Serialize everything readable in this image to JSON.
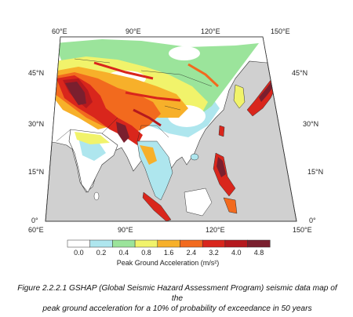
{
  "map": {
    "longitude_labels_top": [
      "60°E",
      "90°E",
      "120°E",
      "150°E"
    ],
    "longitude_labels_bottom": [
      "60°E",
      "90°E",
      "120°E",
      "150°E"
    ],
    "latitude_labels_left": [
      "45°N",
      "30°N",
      "15°N",
      "0°"
    ],
    "latitude_labels_right": [
      "45°N",
      "30°N",
      "15°N",
      "0°"
    ],
    "colors": {
      "ocean": "#d0d0d0",
      "land_low": "#ffffff",
      "level_02": "#aee6ee",
      "level_04": "#9be49b",
      "level_08": "#f1f36b",
      "level_16": "#f7b02a",
      "level_24": "#f26a1e",
      "level_32": "#d9261c",
      "level_40": "#b5191e",
      "level_48": "#7a1f2e"
    }
  },
  "legend": {
    "title": "Peak Ground Acceleration (m/s²)",
    "ticks": [
      "0.0",
      "0.2",
      "0.4",
      "0.8",
      "1.6",
      "2.4",
      "3.2",
      "4.0",
      "4.8"
    ],
    "swatches": [
      "#ffffff",
      "#aee6ee",
      "#9be49b",
      "#f1f36b",
      "#f7b02a",
      "#f26a1e",
      "#d9261c",
      "#b5191e",
      "#7a1f2e"
    ]
  },
  "caption": {
    "line1": "Figure 2.2.2.1 GSHAP (Global Seismic Hazard Assessment Program) seismic data map of the",
    "line2": "peak ground acceleration for a 10% of probability of exceedance in 50 years"
  }
}
